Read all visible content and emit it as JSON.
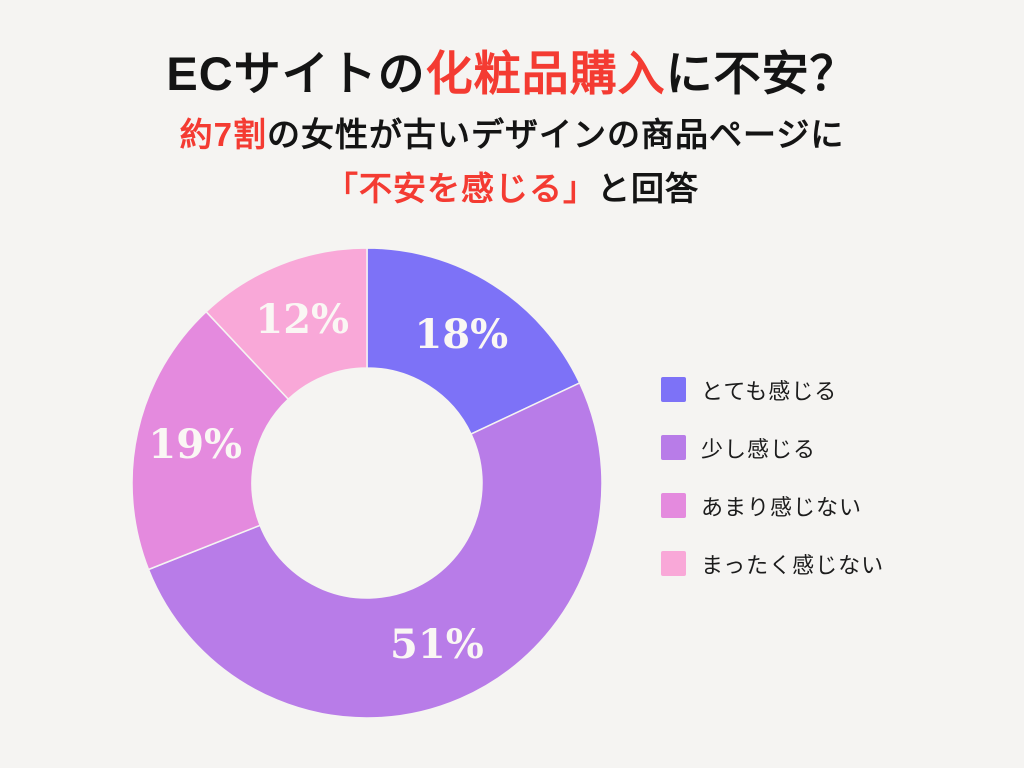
{
  "page": {
    "background": "#f5f4f2"
  },
  "header": {
    "title": {
      "prefix": "ECサイトの",
      "highlight": "化粧品購入",
      "suffix": "に不安？"
    },
    "subtitle_line1": {
      "highlight": "約7割",
      "rest": "の女性が古いデザインの商品ページに"
    },
    "subtitle_line2": {
      "highlight": "「不安を感じる」",
      "rest": "と回答"
    },
    "accent_color": "#f43b32",
    "text_color": "#141414"
  },
  "chart_data": {
    "type": "pie",
    "subtype": "donut",
    "title": "ECサイトの化粧品購入に不安？",
    "subtitle": "約7割の女性が古いデザインの商品ページに「不安を感じる」と回答",
    "categories": [
      "とても感じる",
      "少し感じる",
      "あまり感じない",
      "まったく感じない"
    ],
    "values": [
      18,
      51,
      19,
      12
    ],
    "labels": [
      "18%",
      "51%",
      "19%",
      "12%"
    ],
    "colors": [
      "#7d72f7",
      "#b87ce8",
      "#e48ade",
      "#f9a8d8"
    ],
    "start_angle_deg": 0,
    "direction": "clockwise",
    "donut_hole_ratio": 0.49,
    "label_color": "#faf7f4",
    "legend_position": "right"
  },
  "legend": {
    "items": [
      {
        "label": "とても感じる",
        "color": "#7d72f7"
      },
      {
        "label": "少し感じる",
        "color": "#b87ce8"
      },
      {
        "label": "あまり感じない",
        "color": "#e48ade"
      },
      {
        "label": "まったく感じない",
        "color": "#f9a8d8"
      }
    ]
  }
}
